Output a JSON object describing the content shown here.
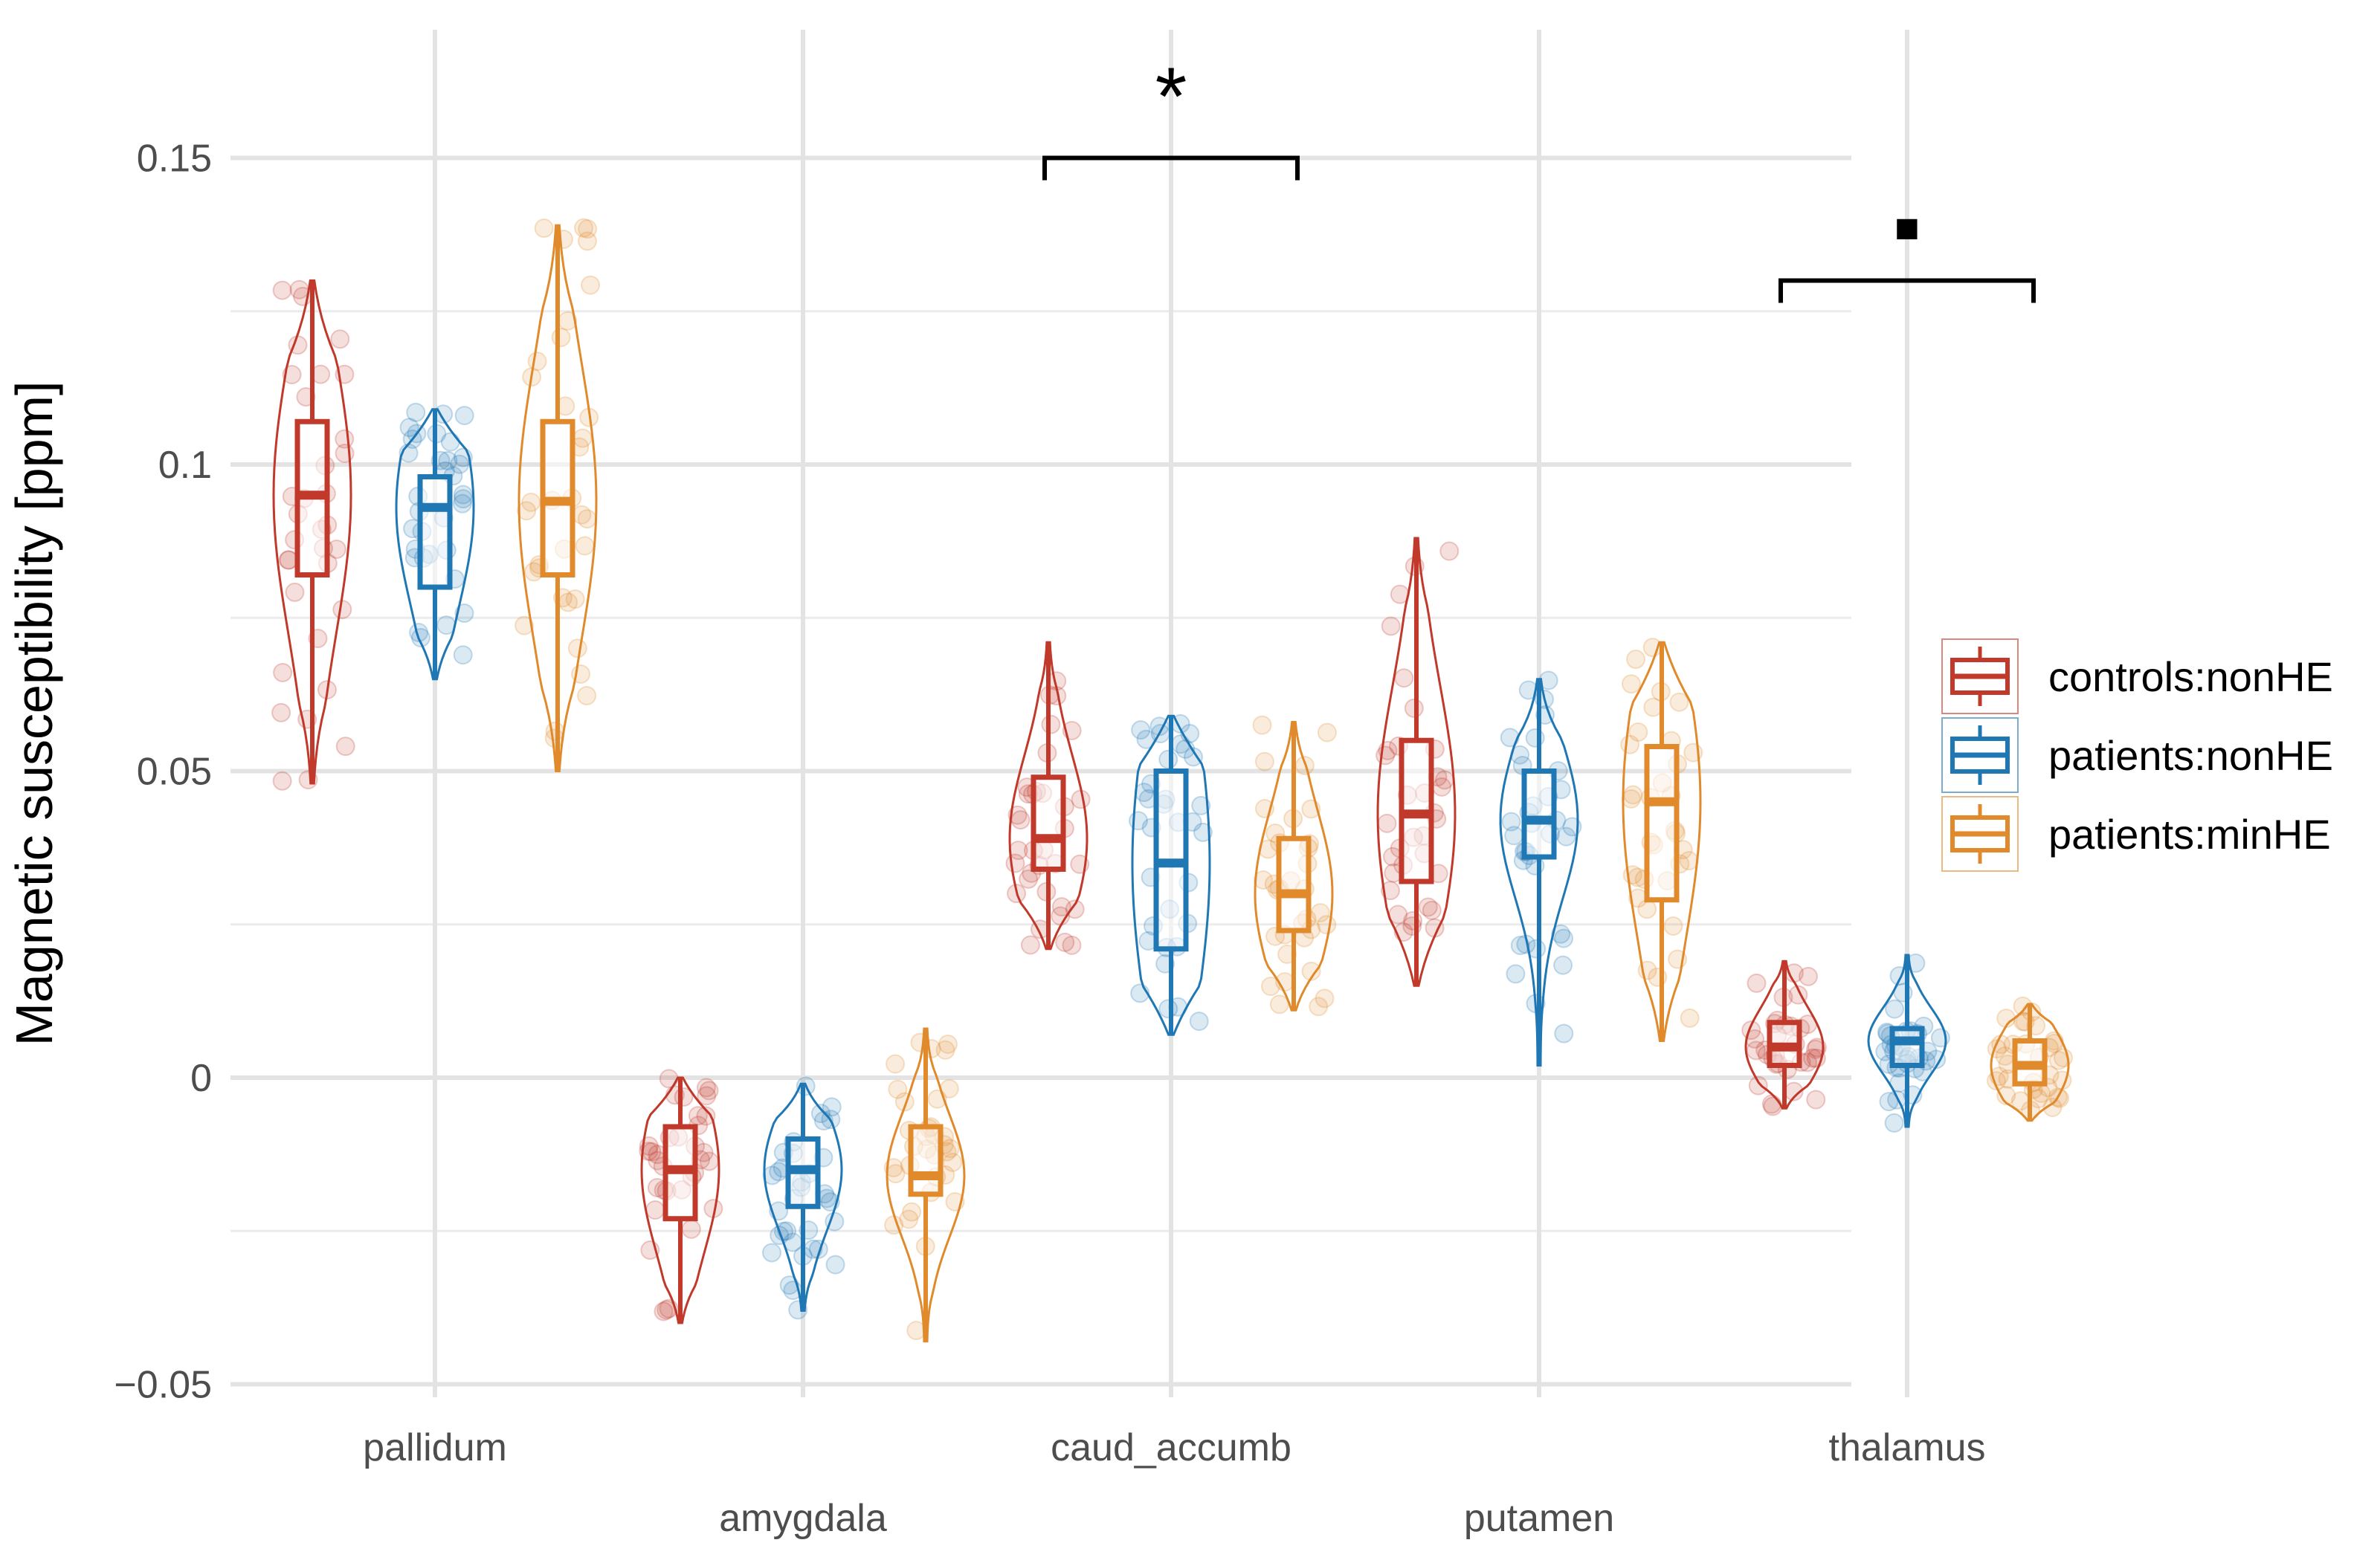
{
  "chart_data": {
    "type": "violin-box",
    "title": "",
    "xlabel": "",
    "ylabel": "Magnetic susceptibility [ppm]",
    "ylim": [
      -0.055,
      0.17
    ],
    "yticks": [
      {
        "value": -0.05,
        "label": "−0.05"
      },
      {
        "value": 0,
        "label": "0"
      },
      {
        "value": 0.05,
        "label": "0.05"
      },
      {
        "value": 0.1,
        "label": "0.1"
      },
      {
        "value": 0.15,
        "label": "0.15"
      }
    ],
    "categories": [
      "pallidum",
      "amygdala",
      "caud_accumb",
      "putamen",
      "thalamus"
    ],
    "legend_position": "right",
    "series": [
      {
        "name": "controls:nonHE",
        "color": "#c0392b",
        "stats": [
          {
            "min": 0.048,
            "q1": 0.082,
            "median": 0.095,
            "q3": 0.107,
            "max": 0.13
          },
          {
            "min": -0.04,
            "q1": -0.023,
            "median": -0.015,
            "q3": -0.008,
            "max": 0.0
          },
          {
            "min": 0.021,
            "q1": 0.034,
            "median": 0.039,
            "q3": 0.049,
            "max": 0.071
          },
          {
            "min": 0.015,
            "q1": 0.032,
            "median": 0.043,
            "q3": 0.055,
            "max": 0.088
          },
          {
            "min": -0.005,
            "q1": 0.002,
            "median": 0.005,
            "q3": 0.009,
            "max": 0.019
          }
        ]
      },
      {
        "name": "patients:nonHE",
        "color": "#1f77b4",
        "stats": [
          {
            "min": 0.065,
            "q1": 0.08,
            "median": 0.093,
            "q3": 0.098,
            "max": 0.109
          },
          {
            "min": -0.038,
            "q1": -0.021,
            "median": -0.015,
            "q3": -0.01,
            "max": -0.001
          },
          {
            "min": 0.007,
            "q1": 0.021,
            "median": 0.035,
            "q3": 0.05,
            "max": 0.059
          },
          {
            "min": 0.002,
            "q1": 0.036,
            "median": 0.042,
            "q3": 0.05,
            "max": 0.065
          },
          {
            "min": -0.008,
            "q1": 0.002,
            "median": 0.006,
            "q3": 0.008,
            "max": 0.02
          }
        ]
      },
      {
        "name": "patients:minHE",
        "color": "#e08a2c",
        "stats": [
          {
            "min": 0.05,
            "q1": 0.082,
            "median": 0.094,
            "q3": 0.107,
            "max": 0.139
          },
          {
            "min": -0.043,
            "q1": -0.019,
            "median": -0.016,
            "q3": -0.008,
            "max": 0.008
          },
          {
            "min": 0.011,
            "q1": 0.024,
            "median": 0.03,
            "q3": 0.039,
            "max": 0.058
          },
          {
            "min": 0.006,
            "q1": 0.029,
            "median": 0.045,
            "q3": 0.054,
            "max": 0.071
          },
          {
            "min": -0.007,
            "q1": -0.001,
            "median": 0.002,
            "q3": 0.006,
            "max": 0.012
          }
        ]
      }
    ],
    "annotations": [
      {
        "category": "caud_accumb",
        "label": "*",
        "bracket_y": 0.15
      },
      {
        "category": "thalamus",
        "label": "▪",
        "bracket_y": 0.13
      }
    ]
  }
}
